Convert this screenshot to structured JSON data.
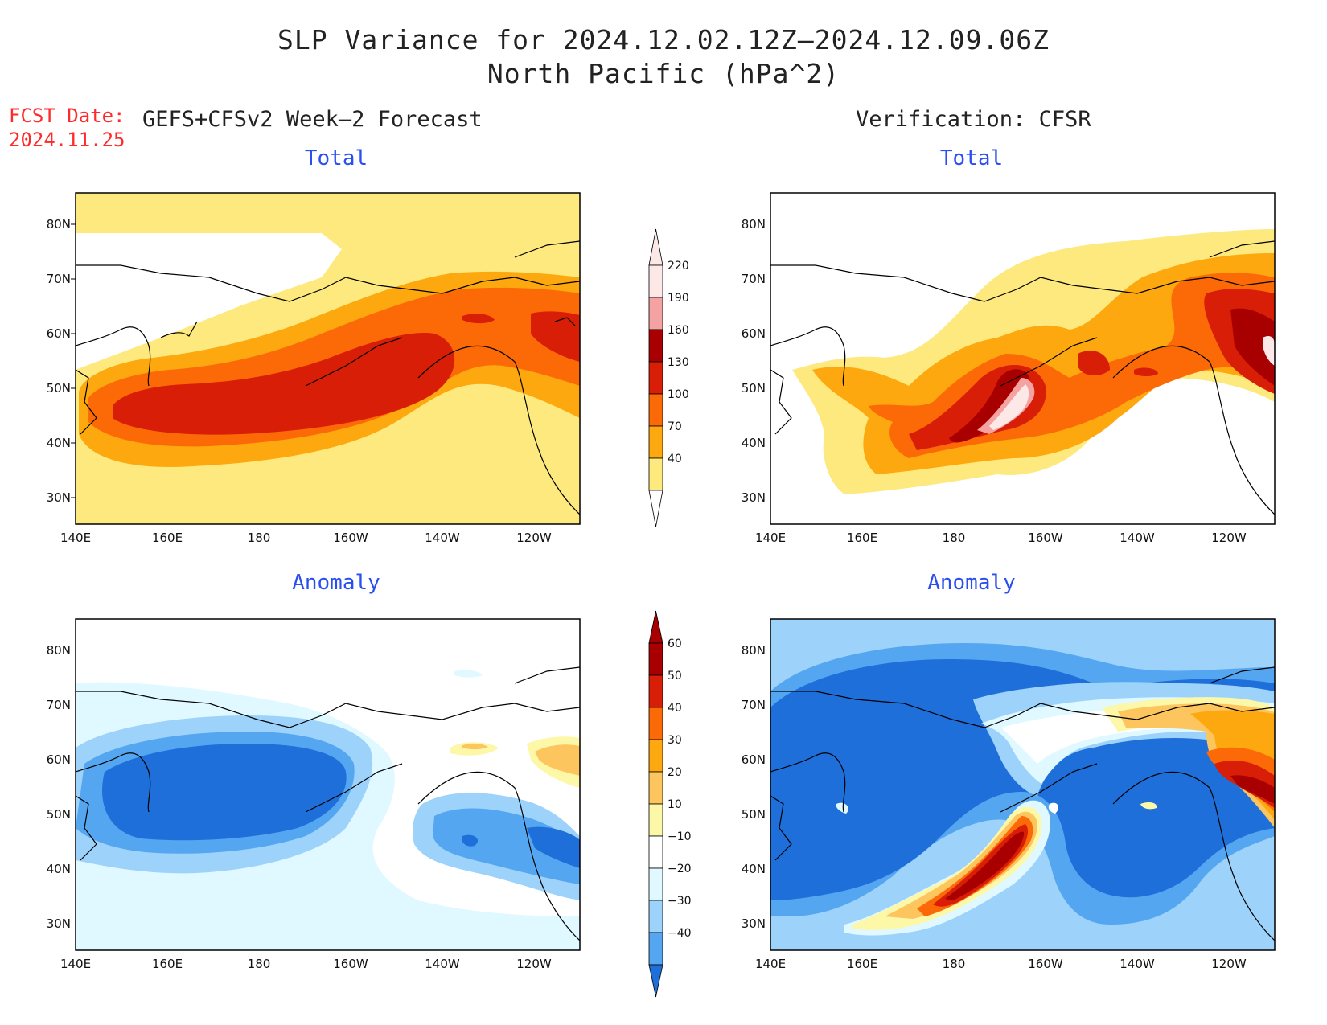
{
  "header": {
    "title_line1": "SLP Variance for 2024.12.02.12Z–2024.12.09.06Z",
    "title_line2": "North Pacific (hPa^2)",
    "fcst_label": "FCST Date:",
    "fcst_date": "2024.11.25",
    "left_column": "GEFS+CFSv2 Week–2 Forecast",
    "right_column": "Verification: CFSR"
  },
  "panels": {
    "fc_total": {
      "subtitle": "Total"
    },
    "fc_anom": {
      "subtitle": "Anomaly"
    },
    "vf_total": {
      "subtitle": "Total"
    },
    "vf_anom": {
      "subtitle": "Anomaly"
    }
  },
  "axes": {
    "lat_ticks": [
      "80N",
      "70N",
      "60N",
      "50N",
      "40N",
      "30N"
    ],
    "lon_ticks": [
      "140E",
      "160E",
      "180",
      "160W",
      "140W",
      "120W"
    ]
  },
  "colorbars": {
    "total": {
      "labels": [
        "220",
        "190",
        "160",
        "130",
        "100",
        "70",
        "40"
      ],
      "colors": [
        "#fde8e8",
        "#f4a2a2",
        "#a80000",
        "#d81e06",
        "#fc6a08",
        "#fca80e",
        "#fde97e"
      ]
    },
    "anomaly": {
      "labels": [
        "60",
        "50",
        "40",
        "30",
        "20",
        "10",
        "−10",
        "−20",
        "−30",
        "−40"
      ],
      "colors": [
        "#a80000",
        "#d81e06",
        "#fc6a08",
        "#fca80e",
        "#fdc55e",
        "#fdf7a8",
        "#ffffff",
        "#e0f8ff",
        "#9dd2fa",
        "#55a6f0",
        "#1f6fdb",
        "#1f6fdb"
      ]
    }
  }
}
